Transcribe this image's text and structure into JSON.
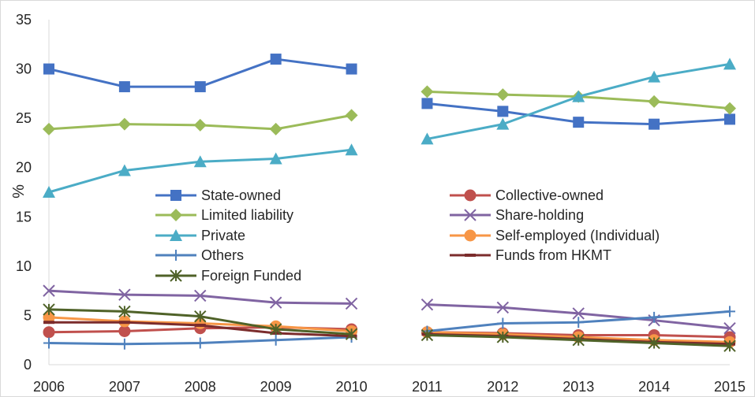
{
  "chart_data": {
    "type": "line",
    "title": "",
    "xlabel": "",
    "ylabel": "%",
    "ylim": [
      0,
      35
    ],
    "yticks": [
      "0",
      "5",
      "10",
      "15",
      "20",
      "25",
      "30",
      "35"
    ],
    "x": [
      "2006",
      "2007",
      "2008",
      "2009",
      "2010",
      "2011",
      "2012",
      "2013",
      "2014",
      "2015"
    ],
    "gap_between": [
      "2010",
      "2011"
    ],
    "grid": false,
    "legend": "center-inside",
    "series": [
      {
        "name": "State-owned",
        "color": "#4472C4",
        "marker": "square",
        "values": [
          30.0,
          28.2,
          28.2,
          31.0,
          30.0,
          26.5,
          25.7,
          24.6,
          24.4,
          24.9
        ]
      },
      {
        "name": "Collective-owned",
        "color": "#C0504D",
        "marker": "circle",
        "values": [
          3.3,
          3.4,
          3.7,
          3.8,
          3.6,
          3.3,
          3.2,
          3.0,
          3.0,
          2.8
        ]
      },
      {
        "name": "Limited liability",
        "color": "#9BBB59",
        "marker": "diamond",
        "values": [
          23.9,
          24.4,
          24.3,
          23.9,
          25.3,
          27.7,
          27.4,
          27.2,
          26.7,
          26.0
        ]
      },
      {
        "name": "Share-holding",
        "color": "#8064A2",
        "marker": "x",
        "values": [
          7.5,
          7.1,
          7.0,
          6.3,
          6.2,
          6.1,
          5.8,
          5.2,
          4.5,
          3.7
        ]
      },
      {
        "name": "Private",
        "color": "#4BACC6",
        "marker": "triangle",
        "values": [
          17.5,
          19.7,
          20.6,
          20.9,
          21.8,
          22.9,
          24.4,
          27.2,
          29.2,
          30.5
        ]
      },
      {
        "name": "Self-employed (Individual)",
        "color": "#F79646",
        "marker": "circle",
        "values": [
          4.8,
          4.4,
          4.2,
          3.9,
          3.4,
          3.3,
          3.1,
          2.8,
          2.5,
          2.3
        ]
      },
      {
        "name": "Others",
        "color": "#4F81BD",
        "marker": "plus",
        "values": [
          2.2,
          2.1,
          2.2,
          2.5,
          2.8,
          3.4,
          4.2,
          4.3,
          4.8,
          5.4
        ]
      },
      {
        "name": "Funds from HKMT",
        "color": "#7B2C2C",
        "marker": "dash",
        "values": [
          4.3,
          4.3,
          4.0,
          3.2,
          2.9,
          3.1,
          2.9,
          2.6,
          2.3,
          2.1
        ]
      },
      {
        "name": "Foreign Funded",
        "color": "#4F6228",
        "marker": "star",
        "values": [
          5.6,
          5.4,
          4.9,
          3.6,
          3.1,
          3.0,
          2.8,
          2.5,
          2.2,
          1.9
        ]
      }
    ]
  }
}
